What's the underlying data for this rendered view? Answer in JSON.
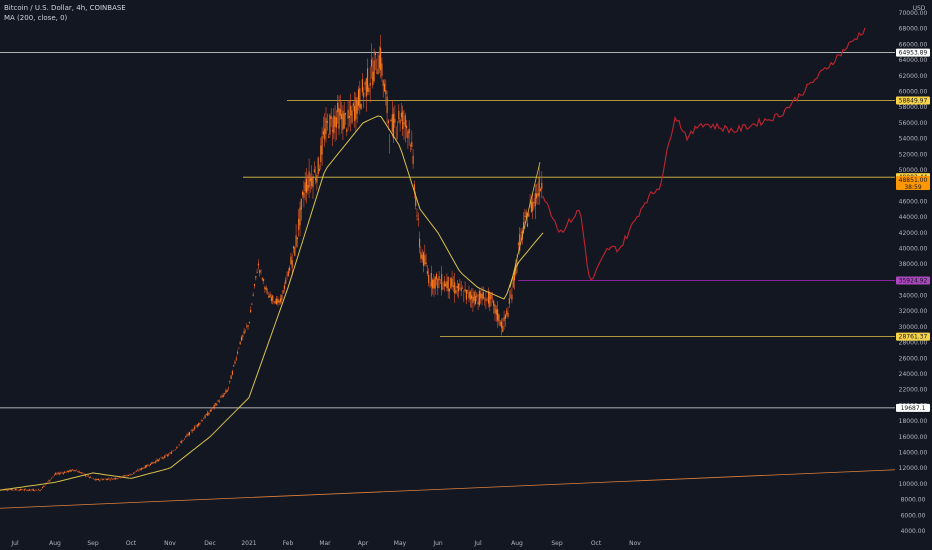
{
  "legend": {
    "symbol": "Bitcoin / U.S. Dollar, 4h, COINBASE",
    "indicator": "MA (200, close, 0)"
  },
  "currency": "USD",
  "colors": {
    "background": "#131722",
    "candle": "#ff7a1a",
    "candle_wick": "#e8542a",
    "ma": "#d9c14a",
    "hline_white": "#e6e6e6",
    "hline_yellow": "#e3c14a",
    "trendline": "#e0803b",
    "projection": "#c0242f",
    "purple_level": "#9c27b0",
    "label_yellow": "#f7d34a",
    "label_orange": "#ff9800",
    "label_purple": "#ab47bc",
    "label_white": "#ffffff"
  },
  "chart_data": {
    "type": "line",
    "title": "Bitcoin / U.S. Dollar, 4h, COINBASE",
    "x_ticks": [
      "Jul",
      "Aug",
      "Sep",
      "Oct",
      "Nov",
      "Dec",
      "2021",
      "Feb",
      "Mar",
      "Apr",
      "May",
      "Jun",
      "Jul",
      "Aug",
      "Sep",
      "Oct",
      "Nov"
    ],
    "y_ticks": [
      4000,
      6000,
      8000,
      10000,
      12000,
      14000,
      16000,
      18000,
      20000,
      22000,
      24000,
      26000,
      28000,
      30000,
      32000,
      34000,
      36000,
      38000,
      40000,
      42000,
      44000,
      46000,
      48000,
      50000,
      52000,
      54000,
      56000,
      58000,
      60000,
      62000,
      64000,
      66000,
      68000,
      70000
    ],
    "ylim": [
      4000,
      70000
    ],
    "grid": false,
    "series": [
      {
        "name": "Bitcoin / U.S. Dollar",
        "points": [
          [
            "Jul",
            9300
          ],
          [
            "Aug",
            11200
          ],
          [
            "Sep",
            10500
          ],
          [
            "Oct",
            11400
          ],
          [
            "Nov",
            13800
          ],
          [
            "Dec",
            19200
          ],
          [
            "2021",
            29000
          ],
          [
            "2021",
            36000
          ],
          [
            "Feb",
            33000
          ],
          [
            "Feb",
            48000
          ],
          [
            "Mar",
            55000
          ],
          [
            "Mar",
            57000
          ],
          [
            "Apr",
            60000
          ],
          [
            "Apr",
            64500
          ],
          [
            "May",
            56000
          ],
          [
            "May",
            55000
          ],
          [
            "Jun",
            36000
          ],
          [
            "Jun",
            35500
          ],
          [
            "Jul",
            34000
          ],
          [
            "Jul",
            30000
          ],
          [
            "Aug",
            41000
          ],
          [
            "Aug",
            49000
          ]
        ]
      },
      {
        "name": "MA (200, close, 0)",
        "points": [
          [
            "Jul",
            9200
          ],
          [
            "Sep",
            11400
          ],
          [
            "Oct",
            10700
          ],
          [
            "Nov",
            12000
          ],
          [
            "Dec",
            16000
          ],
          [
            "2021",
            21000
          ],
          [
            "Feb",
            35000
          ],
          [
            "Mar",
            50000
          ],
          [
            "Apr",
            56000
          ],
          [
            "May",
            53000
          ],
          [
            "Jun",
            42000
          ],
          [
            "Jul",
            35000
          ],
          [
            "Aug",
            38000
          ],
          [
            "Aug",
            42000
          ]
        ]
      }
    ],
    "projection": [
      [
        "Aug",
        47000
      ],
      [
        "Sep",
        42000
      ],
      [
        "Sep",
        45000
      ],
      [
        "Oct",
        35500
      ],
      [
        "Oct",
        40000
      ],
      [
        "Nov",
        40000
      ],
      [
        "Nov",
        46000
      ],
      [
        "Nov",
        48000
      ],
      [
        "Nov",
        57000
      ],
      [
        "Nov",
        54000
      ],
      [
        "Nov",
        56000
      ],
      [
        "Nov",
        55000
      ],
      [
        "Nov",
        57000
      ],
      [
        "Nov",
        68000
      ]
    ],
    "levels": [
      {
        "value": 64953.89,
        "label": "64953.89",
        "style": "white",
        "fill": "label_white"
      },
      {
        "value": 58849.97,
        "label": "58849.97",
        "style": "yellow",
        "fill": "label_yellow"
      },
      {
        "value": 49082.44,
        "label": "49082.44",
        "style": "yellow",
        "fill": "label_yellow"
      },
      {
        "value": 35924.92,
        "label": "35924.92",
        "style": "purple",
        "fill": "label_purple"
      },
      {
        "value": 28761.37,
        "label": "28761.37",
        "style": "yellow",
        "fill": "label_yellow"
      },
      {
        "value": 19687.1,
        "label": "19687.1",
        "style": "white",
        "fill": "label_white"
      }
    ],
    "current_price": {
      "value": 48851.0,
      "label": "48851.00",
      "countdown": "38:59"
    },
    "trendline": {
      "from": [
        "Jul",
        6900
      ],
      "to": [
        "Nov",
        11800
      ]
    }
  }
}
